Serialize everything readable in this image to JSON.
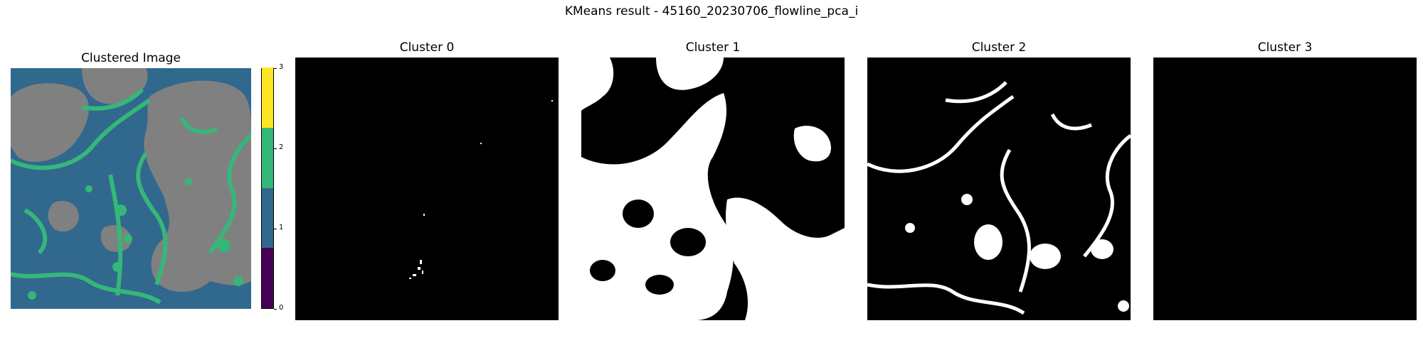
{
  "figure": {
    "suptitle": "KMeans result - 45160_20230706_flowline_pca_i"
  },
  "chart_data": [
    {
      "type": "heatmap",
      "title": "Clustered Image",
      "legend": "colorbar-right",
      "colorbar": {
        "ticks": [
          "0",
          "1",
          "2",
          "3"
        ],
        "range": [
          0,
          3
        ],
        "categories": [
          {
            "value": 0,
            "color": "#440154"
          },
          {
            "value": 1,
            "color": "#31688e"
          },
          {
            "value": 2,
            "color": "#35b779"
          },
          {
            "value": 3,
            "color": "#fde725"
          }
        ]
      },
      "display_colors": {
        "cluster_1": "#31688e",
        "cluster_2": "#35b779",
        "cluster_3": "#808080"
      }
    },
    {
      "type": "heatmap",
      "title": "Cluster 0",
      "colors": {
        "background": "#000000",
        "mask": "#ffffff"
      }
    },
    {
      "type": "heatmap",
      "title": "Cluster 1",
      "colors": {
        "background": "#000000",
        "mask": "#ffffff"
      }
    },
    {
      "type": "heatmap",
      "title": "Cluster 2",
      "colors": {
        "background": "#000000",
        "mask": "#ffffff"
      }
    },
    {
      "type": "heatmap",
      "title": "Cluster 3",
      "colors": {
        "background": "#000000",
        "mask": "#ffffff"
      }
    }
  ]
}
